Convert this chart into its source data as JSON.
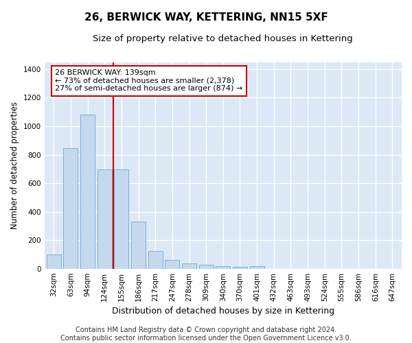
{
  "title": "26, BERWICK WAY, KETTERING, NN15 5XF",
  "subtitle": "Size of property relative to detached houses in Kettering",
  "xlabel": "Distribution of detached houses by size in Kettering",
  "ylabel": "Number of detached properties",
  "categories": [
    "32sqm",
    "63sqm",
    "94sqm",
    "124sqm",
    "155sqm",
    "186sqm",
    "217sqm",
    "247sqm",
    "278sqm",
    "309sqm",
    "340sqm",
    "370sqm",
    "401sqm",
    "432sqm",
    "463sqm",
    "493sqm",
    "524sqm",
    "555sqm",
    "586sqm",
    "616sqm",
    "647sqm"
  ],
  "values": [
    100,
    845,
    1080,
    695,
    695,
    330,
    125,
    60,
    35,
    28,
    18,
    15,
    18,
    0,
    0,
    0,
    0,
    0,
    0,
    0,
    0
  ],
  "bar_color": "#c5d9ee",
  "bar_edge_color": "#7bafd4",
  "vline_pos": 3.5,
  "vline_color": "#cc0000",
  "annotation_line1": "26 BERWICK WAY: 139sqm",
  "annotation_line2": "← 73% of detached houses are smaller (2,378)",
  "annotation_line3": "27% of semi-detached houses are larger (874) →",
  "annotation_box_color": "#ffffff",
  "annotation_box_edge": "#cc0000",
  "ylim": [
    0,
    1450
  ],
  "yticks": [
    0,
    200,
    400,
    600,
    800,
    1000,
    1200,
    1400
  ],
  "plot_bg_color": "#dce8f5",
  "fig_bg_color": "#ffffff",
  "grid_color": "#ffffff",
  "footer": "Contains HM Land Registry data © Crown copyright and database right 2024.\nContains public sector information licensed under the Open Government Licence v3.0.",
  "title_fontsize": 11,
  "subtitle_fontsize": 9.5,
  "tick_fontsize": 7.5,
  "ylabel_fontsize": 8.5,
  "xlabel_fontsize": 9,
  "annotation_fontsize": 8,
  "footer_fontsize": 7
}
